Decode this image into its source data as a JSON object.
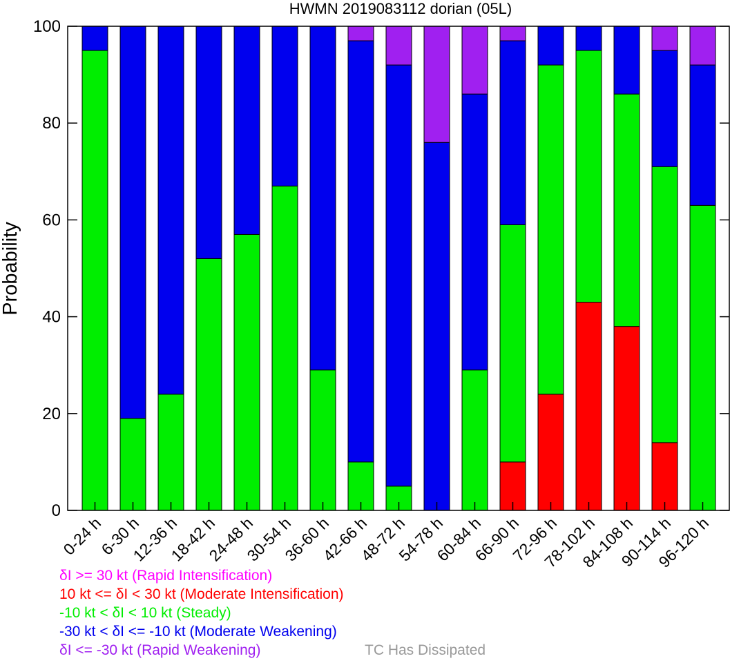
{
  "chart_data": {
    "type": "bar",
    "stacked": true,
    "title": "HWMN 2019083112 dorian (05L)",
    "ylabel": "Probability",
    "ylim": [
      0,
      100
    ],
    "yticks": [
      "0",
      "20",
      "40",
      "60",
      "80",
      "100"
    ],
    "categories": [
      "0-24 h",
      "6-30 h",
      "12-36 h",
      "18-42 h",
      "24-48 h",
      "30-54 h",
      "36-60 h",
      "42-66 h",
      "48-72 h",
      "54-78 h",
      "60-84 h",
      "66-90 h",
      "72-96 h",
      "78-102 h",
      "84-108 h",
      "90-114 h",
      "96-120 h"
    ],
    "series": [
      {
        "name": "δI >= 30 kt (Rapid Intensification)",
        "color": "#ff00ff",
        "values": [
          0,
          0,
          0,
          0,
          0,
          0,
          0,
          0,
          0,
          0,
          0,
          0,
          0,
          0,
          0,
          0,
          0
        ]
      },
      {
        "name": "10 kt <= δI < 30 kt (Moderate Intensification)",
        "color": "#ff0000",
        "values": [
          0,
          0,
          0,
          0,
          0,
          0,
          0,
          0,
          0,
          0,
          0,
          10,
          24,
          43,
          38,
          14,
          0
        ]
      },
      {
        "name": "-10 kt < δI < 10 kt (Steady)",
        "color": "#00ee00",
        "values": [
          95,
          19,
          24,
          52,
          57,
          67,
          29,
          10,
          5,
          0,
          29,
          49,
          68,
          52,
          48,
          57,
          63
        ]
      },
      {
        "name": "-30 kt < δI <= -10 kt (Moderate Weakening)",
        "color": "#0000ee",
        "values": [
          5,
          81,
          76,
          48,
          43,
          33,
          71,
          87,
          87,
          76,
          57,
          38,
          8,
          5,
          14,
          24,
          29
        ]
      },
      {
        "name": "δI <= -30 kt (Rapid Weakening)",
        "color": "#a020f0",
        "values": [
          0,
          0,
          0,
          0,
          0,
          0,
          0,
          3,
          8,
          24,
          14,
          3,
          0,
          0,
          0,
          5,
          8
        ]
      }
    ],
    "dissipated_label": "TC Has Dissipated",
    "dissipated_color": "#999999"
  }
}
